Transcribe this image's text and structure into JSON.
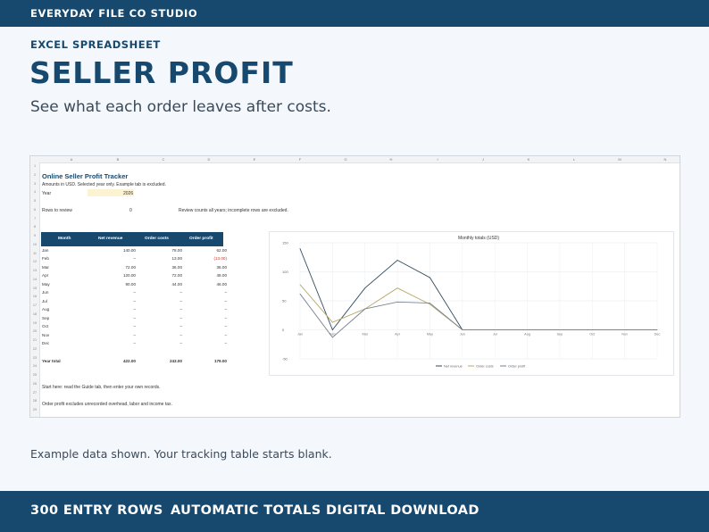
{
  "brand": "EVERYDAY FILE CO STUDIO",
  "kicker": "EXCEL SPREADSHEET",
  "headline": "SELLER PROFIT",
  "subhead": "See what each order leaves after costs.",
  "colors": {
    "navy": "#17496e",
    "highlight": "#fcf3d2",
    "negative": "#c0392b"
  },
  "sheet": {
    "columns": [
      "A",
      "B",
      "C",
      "D",
      "E",
      "F",
      "G",
      "H",
      "I",
      "J",
      "K",
      "L",
      "M",
      "N"
    ],
    "rows": [
      "1",
      "2",
      "3",
      "4",
      "5",
      "6",
      "7",
      "8",
      "9",
      "10",
      "11",
      "12",
      "13",
      "14",
      "15",
      "16",
      "17",
      "18",
      "19",
      "20",
      "21",
      "22",
      "23",
      "24",
      "25",
      "26",
      "27",
      "28",
      "29"
    ],
    "title": "Online Seller Profit Tracker",
    "note": "Amounts in USD. Selected year only. Example tab is excluded.",
    "year_label": "Year",
    "year_value": "2026",
    "review_label": "Rows to review",
    "review_value": "0",
    "review_note": "Review counts all years; incomplete rows are excluded.",
    "table": {
      "headers": [
        "Month",
        "Net revenue",
        "Order costs",
        "Order profit"
      ],
      "rows": [
        [
          "Jan",
          "140.00",
          "78.00",
          "62.00"
        ],
        [
          "Feb",
          "–",
          "13.00",
          "(13.00)"
        ],
        [
          "Mar",
          "72.00",
          "36.00",
          "36.00"
        ],
        [
          "Apr",
          "120.00",
          "72.00",
          "48.00"
        ],
        [
          "May",
          "90.00",
          "44.00",
          "46.00"
        ],
        [
          "Jun",
          "–",
          "–",
          "–"
        ],
        [
          "Jul",
          "–",
          "–",
          "–"
        ],
        [
          "Aug",
          "–",
          "–",
          "–"
        ],
        [
          "Sep",
          "–",
          "–",
          "–"
        ],
        [
          "Oct",
          "–",
          "–",
          "–"
        ],
        [
          "Nov",
          "–",
          "–",
          "–"
        ],
        [
          "Dec",
          "–",
          "–",
          "–"
        ]
      ],
      "total": [
        "Year total",
        "422.00",
        "243.00",
        "179.00"
      ]
    },
    "start_note": "Start here: read the Guide tab, then enter your own records.",
    "profit_note": "Order profit excludes unrecorded overhead, labor and income tax."
  },
  "chart_data": {
    "type": "line",
    "title": "Monthly totals (USD)",
    "categories": [
      "Jan",
      "Feb",
      "Mar",
      "Apr",
      "May",
      "Jun",
      "Jul",
      "Aug",
      "Sep",
      "Oct",
      "Nov",
      "Dec"
    ],
    "series": [
      {
        "name": "Net revenue",
        "color": "#2f4a5e",
        "values": [
          140,
          0,
          72,
          120,
          90,
          0,
          0,
          0,
          0,
          0,
          0,
          0
        ]
      },
      {
        "name": "Order costs",
        "color": "#b8a86a",
        "values": [
          78,
          13,
          36,
          72,
          44,
          0,
          0,
          0,
          0,
          0,
          0,
          0
        ]
      },
      {
        "name": "Order profit",
        "color": "#7b8590",
        "values": [
          62,
          -13,
          36,
          48,
          46,
          0,
          0,
          0,
          0,
          0,
          0,
          0
        ]
      }
    ],
    "yticks": [
      "150",
      "100",
      "50",
      "0",
      "-50"
    ],
    "ylim": [
      -50,
      150
    ],
    "grid": true,
    "legend": "bottom"
  },
  "footnote": "Example data shown. Your tracking table starts blank.",
  "features": [
    "300 ENTRY ROWS",
    "AUTOMATIC TOTALS",
    "DIGITAL DOWNLOAD"
  ]
}
